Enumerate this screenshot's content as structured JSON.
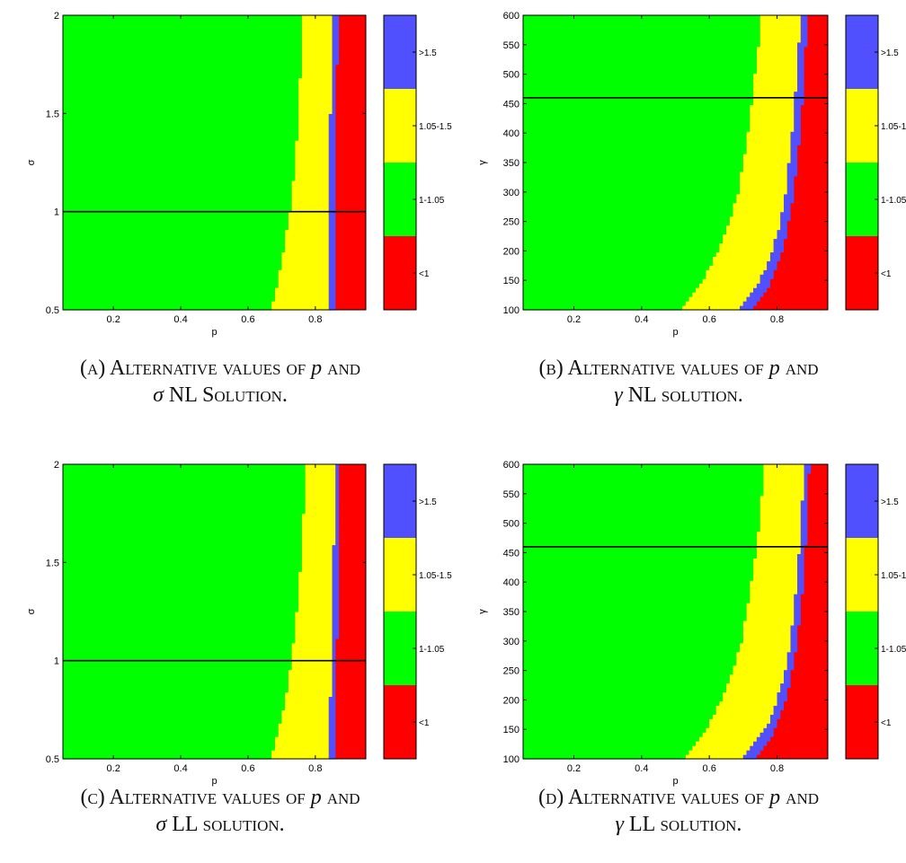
{
  "colors": {
    "red": "#ff0000",
    "green": "#00ff00",
    "yellow": "#ffff00",
    "blue": "#5050ff",
    "line": "#000000"
  },
  "chart_data": [
    {
      "type": "heatmap",
      "xlabel": "p",
      "ylabel": "σ",
      "xlim": [
        0.05,
        0.95
      ],
      "ylim": [
        0.5,
        2
      ],
      "xticks": [
        "0.2",
        "0.4",
        "0.6",
        "0.8"
      ],
      "xtick_values": [
        0.2,
        0.4,
        0.6,
        0.8
      ],
      "yticks": [
        "0.5",
        "1",
        "1.5",
        "2"
      ],
      "ytick_values": [
        0.5,
        1,
        1.5,
        2
      ],
      "hline": 1,
      "boundaries": {
        "y": [
          0.5,
          0.75,
          1.0,
          1.25,
          1.5,
          1.75,
          2.0
        ],
        "green_yellow": [
          0.67,
          0.7,
          0.725,
          0.74,
          0.75,
          0.757,
          0.763
        ],
        "yellow_blue": [
          0.835,
          0.838,
          0.841,
          0.843,
          0.845,
          0.847,
          0.849
        ],
        "blue_red": [
          0.855,
          0.857,
          0.859,
          0.861,
          0.863,
          0.865,
          0.867
        ]
      },
      "legend": {
        "items": [
          ">1.5",
          "1.05-1.5",
          "1-1.05",
          "<1"
        ],
        "colors": [
          "#5050ff",
          "#ffff00",
          "#00ff00",
          "#ff0000"
        ]
      },
      "caption": {
        "tag": "(a)",
        "text1": "Alternative values of ",
        "sym1": "p",
        "text2": " and",
        "sym2": "σ",
        "text3": " NL Solution."
      }
    },
    {
      "type": "heatmap",
      "xlabel": "p",
      "ylabel": "γ",
      "xlim": [
        0.05,
        0.95
      ],
      "ylim": [
        100,
        600
      ],
      "xticks": [
        "0.2",
        "0.4",
        "0.6",
        "0.8"
      ],
      "xtick_values": [
        0.2,
        0.4,
        0.6,
        0.8
      ],
      "yticks": [
        "100",
        "150",
        "200",
        "250",
        "300",
        "350",
        "400",
        "450",
        "500",
        "550",
        "600"
      ],
      "ytick_values": [
        100,
        150,
        200,
        250,
        300,
        350,
        400,
        450,
        500,
        550,
        600
      ],
      "hline": 460,
      "boundaries": {
        "y": [
          100,
          150,
          200,
          250,
          300,
          350,
          400,
          450,
          500,
          550,
          600
        ],
        "green_yellow": [
          0.51,
          0.58,
          0.625,
          0.66,
          0.685,
          0.7,
          0.715,
          0.725,
          0.735,
          0.745,
          0.755
        ],
        "yellow_blue": [
          0.69,
          0.75,
          0.785,
          0.81,
          0.825,
          0.835,
          0.845,
          0.852,
          0.858,
          0.864,
          0.87
        ],
        "blue_red": [
          0.73,
          0.785,
          0.815,
          0.835,
          0.85,
          0.86,
          0.868,
          0.875,
          0.88,
          0.885,
          0.89
        ]
      },
      "legend": {
        "items": [
          ">1.5",
          "1.05-1.5",
          "1-1.05",
          "<1"
        ],
        "colors": [
          "#5050ff",
          "#ffff00",
          "#00ff00",
          "#ff0000"
        ]
      },
      "caption": {
        "tag": "(b)",
        "text1": "Alternative values of ",
        "sym1": "p",
        "text2": " and",
        "sym2": "γ",
        "text3": " NL solution."
      }
    },
    {
      "type": "heatmap",
      "xlabel": "p",
      "ylabel": "σ",
      "xlim": [
        0.05,
        0.95
      ],
      "ylim": [
        0.5,
        2
      ],
      "xticks": [
        "0.2",
        "0.4",
        "0.6",
        "0.8"
      ],
      "xtick_values": [
        0.2,
        0.4,
        0.6,
        0.8
      ],
      "yticks": [
        "0.5",
        "1",
        "1.5",
        "2"
      ],
      "ytick_values": [
        0.5,
        1,
        1.5,
        2
      ],
      "hline": 1,
      "boundaries": {
        "y": [
          0.5,
          0.75,
          1.0,
          1.25,
          1.5,
          1.75,
          2.0
        ],
        "green_yellow": [
          0.67,
          0.705,
          0.73,
          0.745,
          0.757,
          0.765,
          0.772
        ],
        "yellow_blue": [
          0.84,
          0.844,
          0.848,
          0.851,
          0.854,
          0.857,
          0.86
        ],
        "blue_red": [
          0.86,
          0.862,
          0.864,
          0.866,
          0.868,
          0.87,
          0.872
        ]
      },
      "legend": {
        "items": [
          ">1.5",
          "1.05-1.5",
          "1-1.05",
          "<1"
        ],
        "colors": [
          "#5050ff",
          "#ffff00",
          "#00ff00",
          "#ff0000"
        ]
      },
      "caption": {
        "tag": "(c)",
        "text1": "Alternative values of ",
        "sym1": "p",
        "text2": " and",
        "sym2": "σ",
        "text3": " LL solution."
      }
    },
    {
      "type": "heatmap",
      "xlabel": "p",
      "ylabel": "γ",
      "xlim": [
        0.05,
        0.95
      ],
      "ylim": [
        100,
        600
      ],
      "xticks": [
        "0.2",
        "0.4",
        "0.6",
        "0.8"
      ],
      "xtick_values": [
        0.2,
        0.4,
        0.6,
        0.8
      ],
      "yticks": [
        "100",
        "150",
        "200",
        "250",
        "300",
        "350",
        "400",
        "450",
        "500",
        "550",
        "600"
      ],
      "ytick_values": [
        100,
        150,
        200,
        250,
        300,
        350,
        400,
        450,
        500,
        550,
        600
      ],
      "hline": 460,
      "boundaries": {
        "y": [
          100,
          150,
          200,
          250,
          300,
          350,
          400,
          450,
          500,
          550,
          600
        ],
        "green_yellow": [
          0.525,
          0.59,
          0.635,
          0.67,
          0.695,
          0.71,
          0.725,
          0.737,
          0.747,
          0.756,
          0.765
        ],
        "yellow_blue": [
          0.7,
          0.765,
          0.8,
          0.825,
          0.84,
          0.85,
          0.858,
          0.865,
          0.871,
          0.876,
          0.88
        ],
        "blue_red": [
          0.735,
          0.795,
          0.825,
          0.845,
          0.86,
          0.87,
          0.878,
          0.884,
          0.889,
          0.893,
          0.896
        ]
      },
      "legend": {
        "items": [
          ">1.5",
          "1.05-1.5",
          "1-1.05",
          "<1"
        ],
        "colors": [
          "#5050ff",
          "#ffff00",
          "#00ff00",
          "#ff0000"
        ]
      },
      "caption": {
        "tag": "(d)",
        "text1": "Alternative values of ",
        "sym1": "p",
        "text2": " and",
        "sym2": "γ",
        "text3": " LL solution."
      }
    }
  ]
}
